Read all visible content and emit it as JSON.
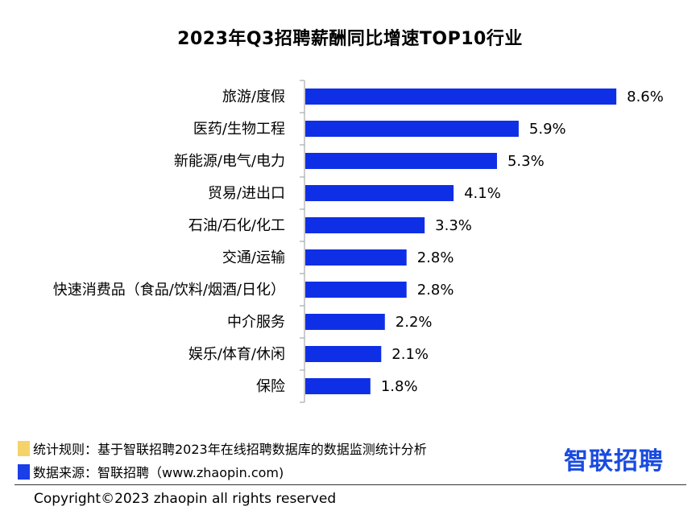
{
  "chart_data": {
    "type": "bar",
    "orientation": "horizontal",
    "title": "2023年Q3招聘薪酬同比增速TOP10行业",
    "categories": [
      "旅游/度假",
      "医药/生物工程",
      "新能源/电气/电力",
      "贸易/进出口",
      "石油/石化/化工",
      "交通/运输",
      "快速消费品（食品/饮料/烟酒/日化）",
      "中介服务",
      "娱乐/体育/休闲",
      "保险"
    ],
    "values": [
      8.6,
      5.9,
      5.3,
      4.1,
      3.3,
      2.8,
      2.8,
      2.2,
      2.1,
      1.8
    ],
    "value_labels": [
      "8.6%",
      "5.9%",
      "5.3%",
      "4.1%",
      "3.3%",
      "2.8%",
      "2.8%",
      "2.2%",
      "2.1%",
      "1.8%"
    ],
    "xlim": [
      0,
      10
    ],
    "bar_color": "#0f2fe6",
    "grid": false,
    "xlabel": "",
    "ylabel": ""
  },
  "footer": {
    "rule_label": "统计规则：基于智联招聘2023年在线招聘数据库的数据监测统计分析",
    "rule_color": "#f5d36a",
    "source_label": "数据来源：智联招聘（www.zhaopin.com)",
    "source_color": "#1a3ee8",
    "logo_text": "智联招聘",
    "logo_color": "#1a4be0",
    "copyright": "Copyright©2023 zhaopin all rights reserved"
  }
}
